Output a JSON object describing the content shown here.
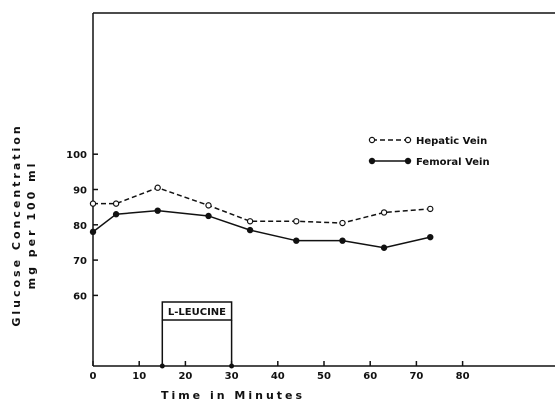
{
  "chart_data": {
    "type": "line",
    "title": "",
    "xlabel": "Time in Minutes",
    "ylabel": "Glucose Concentration",
    "ylabel_unit": "mg per 100 ml",
    "xlim": [
      0,
      100
    ],
    "ylim": [
      40,
      140
    ],
    "x_ticks": [
      "0",
      "10",
      "20",
      "30",
      "40",
      "50",
      "60",
      "70",
      "80"
    ],
    "y_ticks": [
      "60",
      "70",
      "80",
      "90",
      "100"
    ],
    "grid": false,
    "legend_position": "top-right",
    "series": [
      {
        "name": "Hepatic Vein",
        "style": "dashed",
        "marker": "open-circle",
        "x": [
          0,
          5,
          14,
          25,
          34,
          44,
          54,
          63,
          73
        ],
        "y": [
          86,
          86,
          90.5,
          85.5,
          81,
          81,
          80.5,
          83.5,
          84.5
        ]
      },
      {
        "name": "Femoral Vein",
        "style": "solid",
        "marker": "filled-circle",
        "x": [
          0,
          5,
          14,
          25,
          34,
          44,
          54,
          63,
          73
        ],
        "y": [
          78,
          83,
          84,
          82.5,
          78.5,
          75.5,
          75.5,
          73.5,
          76.5
        ]
      }
    ],
    "annotation": {
      "label": "L-LEUCINE",
      "x_start": 15,
      "x_end": 30
    }
  }
}
